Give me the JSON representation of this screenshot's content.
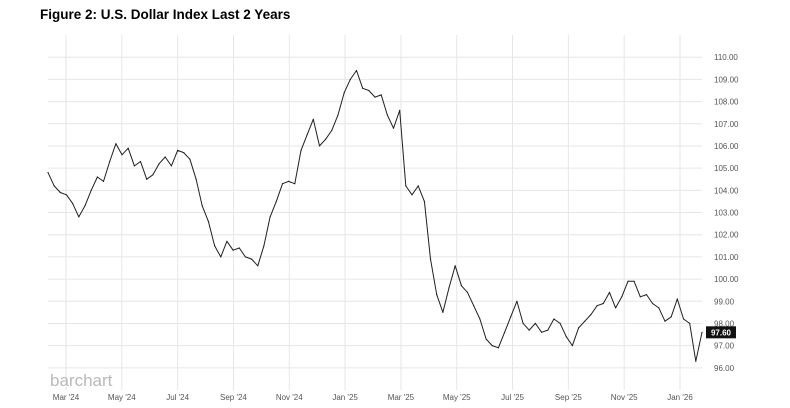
{
  "title": "Figure 2: U.S. Dollar Index Last 2 Years",
  "logo_text": "barchart",
  "colors": {
    "line": "#1f1f1f",
    "grid": "#e6e6e6",
    "tag_bg": "#111111",
    "logo": "#b9b9b9"
  },
  "chart_data": {
    "type": "line",
    "title": "Figure 2: U.S. Dollar Index Last 2 Years",
    "xlabel": "",
    "ylabel": "",
    "ylim": [
      95,
      111
    ],
    "y_ticks": [
      "96.00",
      "97.00",
      "98.00",
      "99.00",
      "100.00",
      "101.00",
      "102.00",
      "103.00",
      "104.00",
      "105.00",
      "106.00",
      "107.00",
      "108.00",
      "109.00",
      "110.00"
    ],
    "x_tick_labels": [
      "Mar '24",
      "May '24",
      "Jul '24",
      "Sep '24",
      "Nov '24",
      "Jan '25",
      "Mar '25",
      "May '25",
      "Jul '25",
      "Sep '25",
      "Nov '25",
      "Jan '26"
    ],
    "grid": true,
    "last_value": "97.60",
    "series": [
      {
        "values": [
          104.8,
          104.2,
          103.9,
          103.8,
          103.4,
          102.8,
          103.3,
          104.0,
          104.6,
          104.4,
          105.3,
          106.1,
          105.6,
          105.9,
          105.1,
          105.3,
          104.5,
          104.7,
          105.2,
          105.5,
          105.1,
          105.8,
          105.7,
          105.4,
          104.5,
          103.3,
          102.6,
          101.5,
          101.0,
          101.7,
          101.3,
          101.4,
          101.0,
          100.9,
          100.6,
          101.5,
          102.8,
          103.5,
          104.3,
          104.4,
          104.3,
          105.8,
          106.5,
          107.2,
          106.0,
          106.3,
          106.7,
          107.4,
          108.4,
          109.0,
          109.4,
          108.6,
          108.5,
          108.2,
          108.3,
          107.4,
          106.8,
          107.6,
          104.2,
          103.8,
          104.2,
          103.5,
          100.9,
          99.3,
          98.5,
          99.6,
          100.6,
          99.7,
          99.4,
          98.8,
          98.2,
          97.3,
          97.0,
          96.9,
          97.6,
          98.3,
          99.0,
          98.0,
          97.7,
          98.0,
          97.6,
          97.7,
          98.2,
          98.0,
          97.4,
          97.0,
          97.8,
          98.1,
          98.4,
          98.8,
          98.9,
          99.4,
          98.7,
          99.2,
          99.9,
          99.9,
          99.2,
          99.3,
          98.9,
          98.7,
          98.1,
          98.3,
          99.1,
          98.2,
          98.0,
          96.3,
          97.6
        ]
      }
    ]
  }
}
